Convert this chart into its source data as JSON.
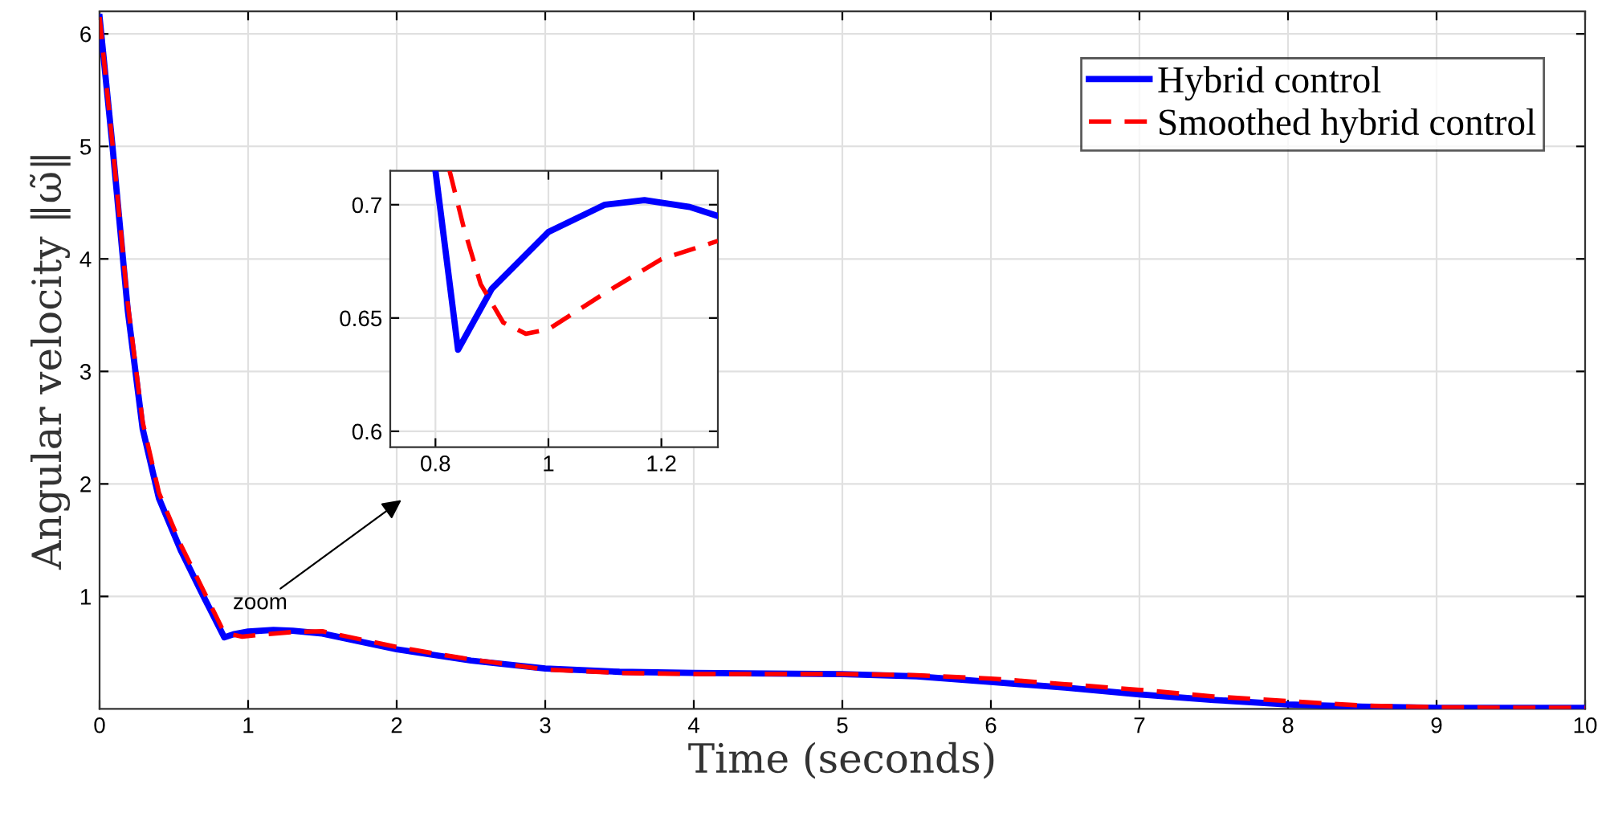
{
  "chart_data": [
    {
      "type": "line",
      "xlabel": "Time (seconds)",
      "ylabel": "Angular velocity ‖ω̃‖",
      "xlim": [
        0,
        10
      ],
      "ylim": [
        0,
        6.2
      ],
      "xticks": [
        0,
        1,
        2,
        3,
        4,
        5,
        6,
        7,
        8,
        9,
        10
      ],
      "yticks": [
        1,
        2,
        3,
        4,
        5,
        6
      ],
      "grid": true,
      "legend": "top right",
      "annotations": [
        "zoom"
      ],
      "series": [
        {
          "name": "Hybrid control",
          "color": "#0000ff",
          "line_style": "solid",
          "x": [
            0,
            0.087,
            0.19,
            0.29,
            0.4,
            0.55,
            0.7,
            0.84,
            0.9,
            1.0,
            1.17,
            1.3,
            1.5,
            2,
            2.5,
            3,
            3.5,
            4,
            5,
            5.5,
            6,
            6.5,
            7,
            7.5,
            8,
            8.5,
            9,
            9.5,
            10
          ],
          "values": [
            6.15,
            5.0,
            3.54,
            2.49,
            1.87,
            1.4,
            1.0,
            0.636,
            0.663,
            0.688,
            0.702,
            0.695,
            0.67,
            0.53,
            0.43,
            0.36,
            0.33,
            0.32,
            0.31,
            0.29,
            0.24,
            0.19,
            0.13,
            0.08,
            0.04,
            0.02,
            0.01,
            0.01,
            0.01
          ]
        },
        {
          "name": "Smoothed hybrid control",
          "color": "#ff0000",
          "line_style": "dashed",
          "x": [
            0,
            0.087,
            0.19,
            0.29,
            0.4,
            0.55,
            0.7,
            0.825,
            0.88,
            0.96,
            1.1,
            1.3,
            1.5,
            2,
            2.5,
            3,
            3.5,
            4,
            5,
            5.5,
            6,
            6.5,
            7,
            7.5,
            8,
            8.5,
            9,
            9.5,
            10
          ],
          "values": [
            6.15,
            5.02,
            3.6,
            2.55,
            1.92,
            1.45,
            1.05,
            0.715,
            0.665,
            0.643,
            0.661,
            0.684,
            0.69,
            0.55,
            0.44,
            0.35,
            0.32,
            0.31,
            0.31,
            0.3,
            0.27,
            0.22,
            0.17,
            0.11,
            0.07,
            0.03,
            0.015,
            0.01,
            0.01
          ]
        }
      ]
    },
    {
      "type": "line",
      "xlim": [
        0.72,
        1.3
      ],
      "ylim": [
        0.593,
        0.715
      ],
      "xticks": [
        0.8,
        1,
        1.2
      ],
      "yticks": [
        0.6,
        0.65,
        0.7
      ],
      "grid": true,
      "series": [
        {
          "color": "#0000ff",
          "line_style": "solid",
          "x": [
            0.8,
            0.84,
            0.9,
            1.0,
            1.1,
            1.17,
            1.25,
            1.3
          ],
          "values": [
            0.715,
            0.636,
            0.663,
            0.688,
            0.7,
            0.702,
            0.699,
            0.695
          ]
        },
        {
          "color": "#ff0000",
          "line_style": "dashed",
          "x": [
            0.825,
            0.85,
            0.88,
            0.92,
            0.96,
            1.0,
            1.1,
            1.2,
            1.3
          ],
          "values": [
            0.715,
            0.69,
            0.665,
            0.648,
            0.643,
            0.645,
            0.661,
            0.676,
            0.684
          ]
        }
      ]
    }
  ]
}
